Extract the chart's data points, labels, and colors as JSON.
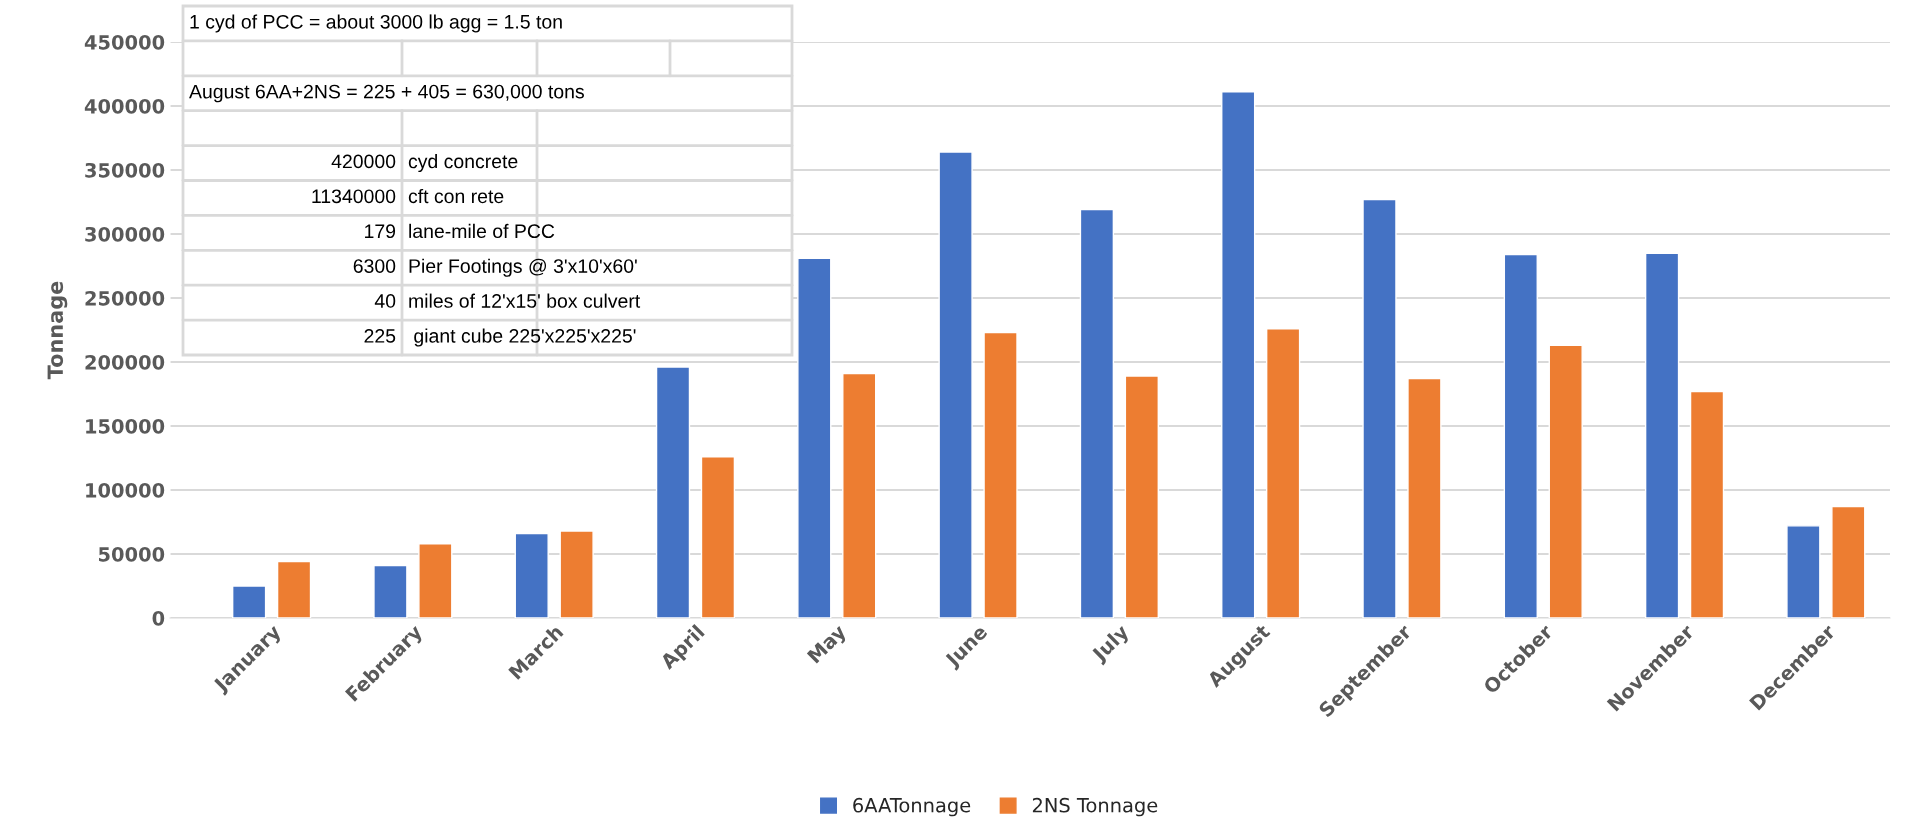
{
  "chart_data": {
    "type": "bar",
    "ylabel": "Tonnage",
    "categories": [
      "January",
      "February",
      "March",
      "April",
      "May",
      "June",
      "July",
      "August",
      "September",
      "October",
      "November",
      "December"
    ],
    "series": [
      {
        "name": "6AATonnage",
        "color": "#4472c4",
        "values": [
          25000,
          41000,
          66000,
          196000,
          281000,
          364000,
          319000,
          411000,
          327000,
          284000,
          285000,
          72000
        ]
      },
      {
        "name": "2NS Tonnage",
        "color": "#ed7d31",
        "values": [
          44000,
          58000,
          68000,
          126000,
          191000,
          223000,
          189000,
          226000,
          187000,
          213000,
          177000,
          87000
        ]
      }
    ],
    "ylim": [
      0,
      450000
    ],
    "yticks": [
      0,
      50000,
      100000,
      150000,
      200000,
      250000,
      300000,
      350000,
      400000,
      450000
    ],
    "grid": "y",
    "legend": "bottom",
    "annotations": [
      "1 cyd of PCC = about 3000 lb agg = 1.5 ton",
      "August 6AA+2NS = 225 + 405 = 630,000 tons",
      "420000",
      "cyd concrete",
      "11340000",
      "cft con rete",
      "179",
      "lane-mile of PCC",
      "6300",
      "Pier Footings @ 3'x10'x60'",
      "40",
      "miles of 12'x15' box culvert",
      "225",
      " giant cube 225'x225'x225'"
    ]
  }
}
